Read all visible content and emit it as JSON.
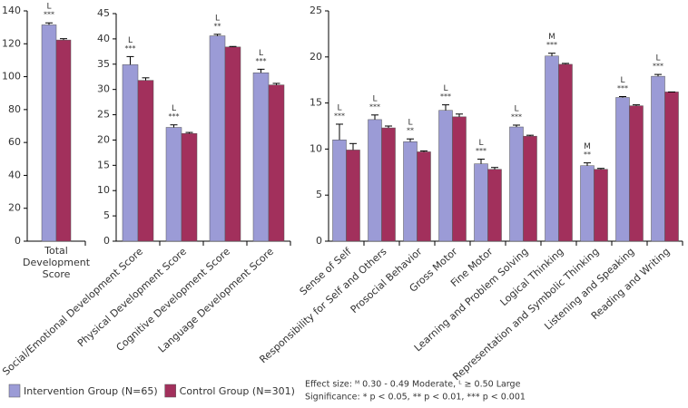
{
  "chart_data": [
    {
      "type": "bar",
      "categories": [
        "Total Development Score"
      ],
      "ylim": [
        0,
        140
      ],
      "yticks": [
        0,
        20,
        40,
        60,
        80,
        100,
        120,
        140
      ],
      "effect": [
        "L"
      ],
      "significance": [
        "***"
      ],
      "series": [
        {
          "name": "Intervention Group (N=65)",
          "color": "#9b9bd6",
          "values": [
            131.5
          ],
          "errors": [
            1.2
          ]
        },
        {
          "name": "Control Group (N=301)",
          "color": "#a2305c",
          "values": [
            122.3
          ],
          "errors": [
            0.8
          ]
        }
      ]
    },
    {
      "type": "bar",
      "categories": [
        "Social/Emotional Development Score",
        "Physical Development Score",
        "Cognitive Development Score",
        "Language Development Score"
      ],
      "ylim": [
        0,
        45
      ],
      "yticks": [
        0,
        5,
        10,
        15,
        20,
        25,
        30,
        35,
        40,
        45
      ],
      "effect": [
        "L",
        "L",
        "L",
        "L"
      ],
      "significance": [
        "***",
        "***",
        "**",
        "***"
      ],
      "series": [
        {
          "color": "#9b9bd6",
          "values": [
            34.9,
            22.5,
            40.6,
            33.3
          ],
          "errors": [
            1.6,
            0.5,
            0.3,
            0.7
          ]
        },
        {
          "color": "#a2305c",
          "values": [
            31.8,
            21.3,
            38.4,
            30.9
          ],
          "errors": [
            0.5,
            0.2,
            0.1,
            0.3
          ]
        }
      ]
    },
    {
      "type": "bar",
      "categories": [
        "Sense of Self",
        "Responsibility for Self and Others",
        "Prosocial Behavior",
        "Gross Motor",
        "Fine Motor",
        "Learning and Problem Solving",
        "Logical Thinking",
        "Representation and Symbolic Thinking",
        "Listening and Speaking",
        "Reading and Writing"
      ],
      "ylim": [
        0,
        25
      ],
      "yticks": [
        0,
        5,
        10,
        15,
        20,
        25
      ],
      "effect": [
        "L",
        "L",
        "L",
        "L",
        "L",
        "L",
        "M",
        "M",
        "L",
        "L"
      ],
      "significance": [
        "***",
        "***",
        "**",
        "***",
        "***",
        "***",
        "***",
        "**",
        "***",
        "***"
      ],
      "series": [
        {
          "color": "#9b9bd6",
          "values": [
            11.0,
            13.2,
            10.8,
            14.2,
            8.4,
            12.4,
            20.1,
            8.2,
            15.6,
            17.9
          ],
          "errors": [
            1.7,
            0.5,
            0.3,
            0.6,
            0.5,
            0.2,
            0.3,
            0.3,
            0.1,
            0.2
          ]
        },
        {
          "color": "#a2305c",
          "values": [
            9.9,
            12.3,
            9.7,
            13.5,
            7.8,
            11.4,
            19.2,
            7.8,
            14.7,
            16.2
          ],
          "errors": [
            0.7,
            0.2,
            0.1,
            0.3,
            0.2,
            0.1,
            0.1,
            0.1,
            0.1,
            0.0
          ]
        }
      ]
    }
  ],
  "notes": [
    "Effect size: ᴹ 0.30 - 0.49 Moderate, ᴸ ≥ 0.50 Large",
    "Significance: * p < 0.05, ** p < 0.01, *** p < 0.001"
  ]
}
